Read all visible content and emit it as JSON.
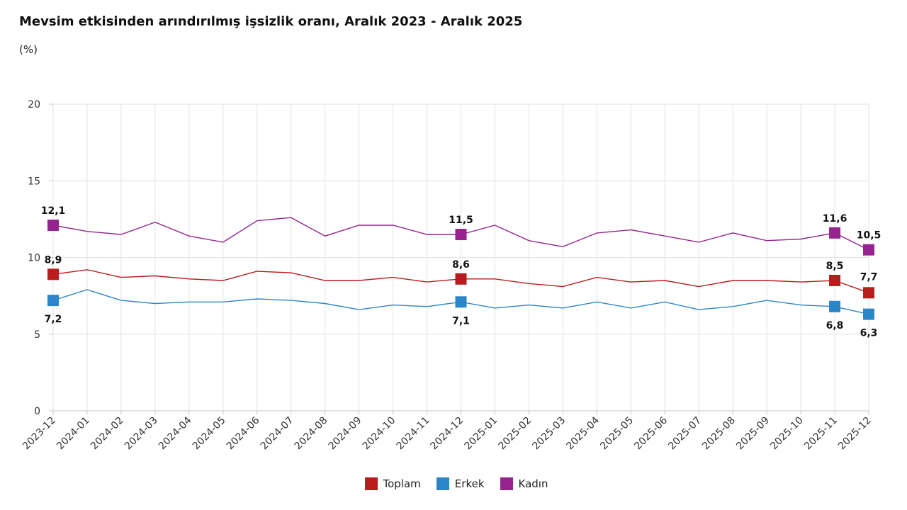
{
  "title": "Mevsim etkisinden arındırılmış işsizlik oranı, Aralık 2023 - Aralık 2025",
  "subtitle": "(%)",
  "chart_data": {
    "type": "line",
    "title": "Mevsim etkisinden arındırılmış işsizlik oranı, Aralık 2023 - Aralık 2025",
    "ylabel": "",
    "xlabel": "",
    "ylim": [
      0,
      20
    ],
    "yticks": [
      "0",
      "5",
      "10",
      "15",
      "20"
    ],
    "grid": true,
    "legend_position": "bottom-center",
    "categories": [
      "2023-12",
      "2024-01",
      "2024-02",
      "2024-03",
      "2024-04",
      "2024-05",
      "2024-06",
      "2024-07",
      "2024-08",
      "2024-09",
      "2024-10",
      "2024-11",
      "2024-12",
      "2025-01",
      "2025-02",
      "2025-03",
      "2025-04",
      "2025-05",
      "2025-06",
      "2025-07",
      "2025-08",
      "2025-09",
      "2025-10",
      "2025-11",
      "2025-12"
    ],
    "series": [
      {
        "name": "Toplam",
        "color": "#b81c1c",
        "values": [
          8.9,
          9.2,
          8.7,
          8.8,
          8.6,
          8.5,
          9.1,
          9.0,
          8.5,
          8.5,
          8.7,
          8.4,
          8.6,
          8.6,
          8.3,
          8.1,
          8.7,
          8.4,
          8.5,
          8.1,
          8.5,
          8.5,
          8.4,
          8.5,
          7.7
        ],
        "labeled_points": [
          {
            "index": 0,
            "label": "8,9"
          },
          {
            "index": 12,
            "label": "8,6"
          },
          {
            "index": 23,
            "label": "8,5"
          },
          {
            "index": 24,
            "label": "7,7"
          }
        ]
      },
      {
        "name": "Erkek",
        "color": "#2b86c7",
        "values": [
          7.2,
          7.9,
          7.2,
          7.0,
          7.1,
          7.1,
          7.3,
          7.2,
          7.0,
          6.6,
          6.9,
          6.8,
          7.1,
          6.7,
          6.9,
          6.7,
          7.1,
          6.7,
          7.1,
          6.6,
          6.8,
          7.2,
          6.9,
          6.8,
          6.3
        ],
        "labeled_points": [
          {
            "index": 0,
            "label": "7,2"
          },
          {
            "index": 12,
            "label": "7,1"
          },
          {
            "index": 23,
            "label": "6,8"
          },
          {
            "index": 24,
            "label": "6,3"
          }
        ]
      },
      {
        "name": "Kadın",
        "color": "#95248e",
        "values": [
          12.1,
          11.7,
          11.5,
          12.3,
          11.4,
          11.0,
          12.4,
          12.6,
          11.4,
          12.1,
          12.1,
          11.5,
          11.5,
          12.1,
          11.1,
          10.7,
          11.6,
          11.8,
          11.4,
          11.0,
          11.6,
          11.1,
          11.2,
          11.6,
          10.5
        ],
        "labeled_points": [
          {
            "index": 0,
            "label": "12,1"
          },
          {
            "index": 12,
            "label": "11,5"
          },
          {
            "index": 23,
            "label": "11,6"
          },
          {
            "index": 24,
            "label": "10,5"
          }
        ]
      }
    ]
  }
}
